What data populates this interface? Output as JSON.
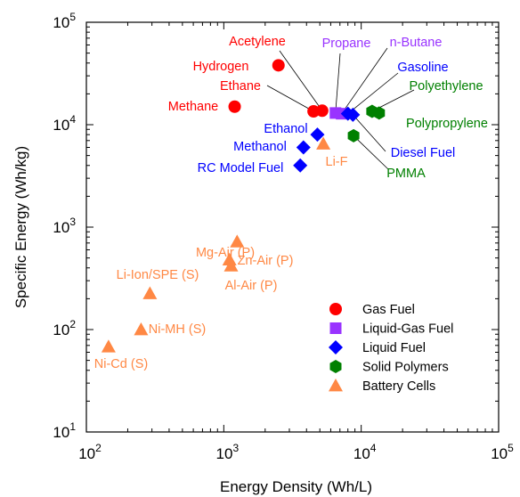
{
  "chart_data": {
    "type": "scatter",
    "title": "",
    "xlabel": "Energy Density (Wh/L)",
    "ylabel": "Specific Energy (Wh/kg)",
    "xscale": "log",
    "yscale": "log",
    "xlim": [
      100,
      100000
    ],
    "ylim": [
      10,
      100000
    ],
    "xticks": [
      {
        "value": 100,
        "base": "10",
        "exp": "2"
      },
      {
        "value": 1000,
        "base": "10",
        "exp": "3"
      },
      {
        "value": 10000,
        "base": "10",
        "exp": "4"
      },
      {
        "value": 100000,
        "base": "10",
        "exp": "5"
      }
    ],
    "yticks": [
      {
        "value": 10,
        "base": "10",
        "exp": "1"
      },
      {
        "value": 100,
        "base": "10",
        "exp": "2"
      },
      {
        "value": 1000,
        "base": "10",
        "exp": "3"
      },
      {
        "value": 10000,
        "base": "10",
        "exp": "4"
      },
      {
        "value": 100000,
        "base": "10",
        "exp": "5"
      }
    ],
    "legend_position": "bottom-right",
    "series": [
      {
        "name": "Gas Fuel",
        "marker": "circle",
        "color": "#ff0000",
        "points": [
          {
            "label": "Hydrogen",
            "x": 2500,
            "y": 38000
          },
          {
            "label": "Methane",
            "x": 1200,
            "y": 15000
          },
          {
            "label": "Ethane",
            "x": 4500,
            "y": 13500
          },
          {
            "label": "Acetylene",
            "x": 5200,
            "y": 13700
          }
        ]
      },
      {
        "name": "Liquid-Gas Fuel",
        "marker": "square",
        "color": "#9933ff",
        "points": [
          {
            "label": "Propane",
            "x": 6500,
            "y": 13000
          },
          {
            "label": "n-Butane",
            "x": 7200,
            "y": 12800
          }
        ]
      },
      {
        "name": "Liquid Fuel",
        "marker": "diamond",
        "color": "#0000ff",
        "points": [
          {
            "label": "Gasoline",
            "x": 8000,
            "y": 12800
          },
          {
            "label": "Diesel Fuel",
            "x": 8700,
            "y": 12500
          },
          {
            "label": "Ethanol",
            "x": 4800,
            "y": 8000
          },
          {
            "label": "Methanol",
            "x": 3800,
            "y": 6000
          },
          {
            "label": "RC Model Fuel",
            "x": 3600,
            "y": 4000
          }
        ]
      },
      {
        "name": "Solid Polymers",
        "marker": "hexagon",
        "color": "#008000",
        "points": [
          {
            "label": "Polyethylene",
            "x": 12000,
            "y": 13500
          },
          {
            "label": "Polypropylene",
            "x": 13500,
            "y": 13000
          },
          {
            "label": "PMMA",
            "x": 8800,
            "y": 7800
          }
        ]
      },
      {
        "name": "Battery Cells",
        "marker": "triangle",
        "color": "#ff8844",
        "points": [
          {
            "label": "Li-F",
            "x": 5300,
            "y": 6500
          },
          {
            "label": "Mg-Air (P)",
            "x": 1250,
            "y": 720
          },
          {
            "label": "Zn-Air (P)",
            "x": 1100,
            "y": 480
          },
          {
            "label": "Al-Air (P)",
            "x": 1130,
            "y": 420
          },
          {
            "label": "Li-Ion/SPE (S)",
            "x": 290,
            "y": 225
          },
          {
            "label": "Ni-MH (S)",
            "x": 250,
            "y": 100
          },
          {
            "label": "Ni-Cd (S)",
            "x": 145,
            "y": 68
          }
        ]
      }
    ]
  }
}
